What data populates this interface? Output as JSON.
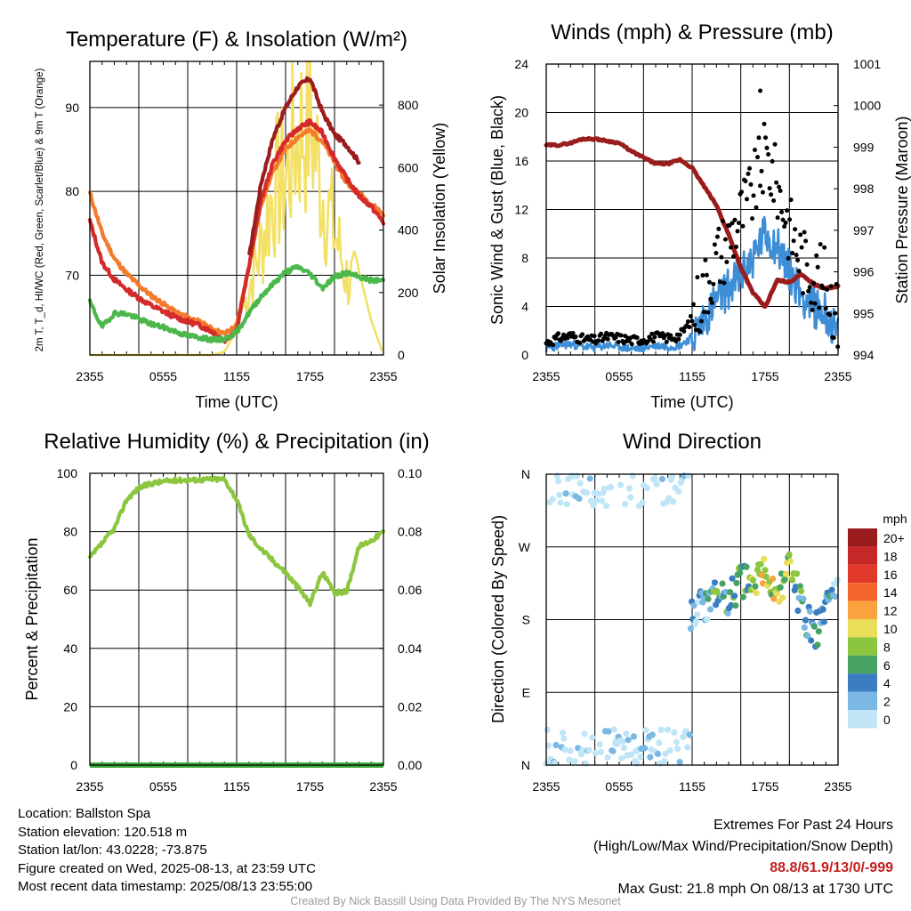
{
  "chart_data": [
    {
      "type": "line",
      "title": "Temperature (F) & Insolation (W/m²)",
      "xlabel": "Time (UTC)",
      "ylabel": "2m T, T_d, HI/WC (Red, Green, Scarlet/Blue) & 9m T (Orange)",
      "ylabel2": "Solar Insolation (Yellow)",
      "x_ticks": [
        "2355",
        "0555",
        "1155",
        "1755",
        "2355"
      ],
      "y_ticks": [
        70,
        80,
        90
      ],
      "y2_ticks": [
        0,
        200,
        400,
        600,
        800
      ],
      "ylim": [
        60.5,
        95.5
      ],
      "y2lim": [
        0,
        940
      ],
      "grid": true,
      "x_hours": [
        0,
        1,
        2,
        3,
        4,
        5,
        6,
        7,
        8,
        9,
        10,
        11,
        12,
        13,
        14,
        15,
        16,
        17,
        18,
        19,
        20,
        21,
        22,
        23,
        24
      ],
      "series": [
        {
          "name": "2m T",
          "color": "#d42a2a",
          "values": [
            76.5,
            71.5,
            69.5,
            68.3,
            67.3,
            66.4,
            65.7,
            65.0,
            64.5,
            64.0,
            63.3,
            62.2,
            63.5,
            71.0,
            79.0,
            83.5,
            86.0,
            87.5,
            88.3,
            87.0,
            84.0,
            81.5,
            79.5,
            78.2,
            76.3
          ]
        },
        {
          "name": "9m T",
          "color": "#f47b2b",
          "values": [
            79.8,
            75.0,
            72.0,
            70.2,
            68.8,
            67.6,
            66.6,
            65.6,
            65.0,
            64.4,
            63.6,
            63.0,
            64.0,
            71.0,
            78.5,
            82.5,
            85.0,
            86.5,
            87.3,
            86.0,
            83.5,
            81.0,
            79.8,
            78.5,
            77.3
          ]
        },
        {
          "name": "HI/WC",
          "color": "#9b1c1c",
          "values": [
            null,
            null,
            null,
            null,
            null,
            null,
            null,
            null,
            null,
            null,
            null,
            null,
            null,
            72.0,
            81.0,
            86.5,
            90.0,
            92.5,
            93.5,
            89.5,
            86.8,
            85.5,
            83.5,
            null,
            null
          ]
        },
        {
          "name": "T_d",
          "color": "#4cb84c",
          "values": [
            66.8,
            63.8,
            65.5,
            65.4,
            64.8,
            64.2,
            63.8,
            63.3,
            62.8,
            62.6,
            62.3,
            62.4,
            63.2,
            65.5,
            67.5,
            69.0,
            70.4,
            71.0,
            70.2,
            68.5,
            69.8,
            70.3,
            69.8,
            69.4,
            69.4
          ]
        },
        {
          "name": "Insolation",
          "color": "#f3e067",
          "axis": "y2",
          "values": [
            0,
            0,
            0,
            0,
            0,
            0,
            0,
            0,
            0,
            0,
            0,
            10,
            80,
            260,
            420,
            640,
            690,
            860,
            920,
            640,
            480,
            300,
            270,
            110,
            0
          ]
        }
      ]
    },
    {
      "type": "scatter",
      "title": "Winds (mph) & Pressure (mb)",
      "xlabel": "Time (UTC)",
      "ylabel": "Sonic Wind & Gust (Blue, Black)",
      "ylabel2": "Station Pressure (Maroon)",
      "x_ticks": [
        "2355",
        "0555",
        "1155",
        "1755",
        "2355"
      ],
      "y_ticks": [
        0,
        4,
        8,
        12,
        16,
        20,
        24
      ],
      "y2_ticks": [
        994,
        995,
        996,
        997,
        998,
        999,
        1000,
        1001
      ],
      "ylim": [
        0,
        24
      ],
      "y2lim": [
        994,
        1001
      ],
      "grid": true,
      "x_hours": [
        0,
        1,
        2,
        3,
        4,
        5,
        6,
        7,
        8,
        9,
        10,
        11,
        12,
        13,
        14,
        15,
        16,
        17,
        18,
        19,
        20,
        21,
        22,
        23,
        24
      ],
      "series": [
        {
          "name": "Sonic Wind",
          "color": "#3d8ed6",
          "values": [
            0.5,
            0.8,
            0.9,
            0.7,
            0.6,
            0.8,
            0.7,
            0.5,
            0.6,
            0.8,
            0.7,
            0.8,
            1.5,
            3.0,
            4.5,
            5.5,
            6.5,
            8.0,
            10.0,
            9.0,
            7.0,
            5.0,
            4.0,
            3.5,
            1.5
          ]
        },
        {
          "name": "Gust",
          "color": "#000000",
          "values": [
            1.0,
            1.4,
            1.6,
            1.3,
            1.2,
            1.5,
            1.4,
            1.2,
            1.3,
            1.5,
            1.4,
            1.6,
            3.0,
            5.5,
            8.0,
            9.5,
            11.5,
            13.5,
            16.5,
            14.0,
            10.5,
            8.0,
            6.5,
            6.0,
            3.0
          ]
        },
        {
          "name": "Station Pressure",
          "color": "#9b1c1c",
          "axis": "y2",
          "values": [
            999.05,
            999.05,
            999.1,
            999.2,
            999.2,
            999.15,
            999.1,
            998.9,
            998.75,
            998.6,
            998.6,
            998.7,
            998.5,
            998.05,
            997.6,
            996.9,
            996.1,
            995.5,
            995.15,
            995.8,
            995.75,
            995.95,
            995.7,
            995.6,
            995.65
          ]
        }
      ],
      "peak_gust": {
        "x_hour": 17.6,
        "value": 21.8
      }
    },
    {
      "type": "line",
      "title": "Relative Humidity (%) & Precipitation (in)",
      "xlabel": "",
      "ylabel": "Percent & Precipitation",
      "x_ticks": [
        "2355",
        "0555",
        "1155",
        "1755",
        "2355"
      ],
      "y_ticks": [
        0,
        20,
        40,
        60,
        80,
        100
      ],
      "y2_ticks": [
        "0.00",
        "0.02",
        "0.04",
        "0.06",
        "0.08",
        "0.10"
      ],
      "ylim": [
        0,
        100
      ],
      "y2lim": [
        0,
        0.1
      ],
      "grid": true,
      "x_hours": [
        0,
        1,
        2,
        3,
        4,
        5,
        6,
        7,
        8,
        9,
        10,
        11,
        12,
        13,
        14,
        15,
        16,
        17,
        18,
        19,
        20,
        21,
        22,
        23,
        24
      ],
      "series": [
        {
          "name": "Relative Humidity",
          "color": "#8cc63f",
          "values": [
            71,
            76,
            81,
            91,
            95,
            96.5,
            97.2,
            97.6,
            97.8,
            97.8,
            98,
            98,
            91,
            79,
            74,
            70,
            66,
            61,
            55.5,
            66,
            59,
            59.5,
            75,
            77,
            80
          ]
        },
        {
          "name": "Precipitation",
          "color": "#3daa3d",
          "axis": "y2",
          "values": [
            0,
            0,
            0,
            0,
            0,
            0,
            0,
            0,
            0,
            0,
            0,
            0,
            0,
            0,
            0,
            0,
            0,
            0,
            0,
            0,
            0,
            0,
            0,
            0,
            0
          ]
        }
      ]
    },
    {
      "type": "scatter",
      "title": "Wind Direction",
      "xlabel": "",
      "ylabel": "Direction (Colored By Speed)",
      "x_ticks": [
        "2355",
        "0555",
        "1155",
        "1755",
        "2355"
      ],
      "y_ticks": [
        "N",
        "E",
        "S",
        "W",
        "N"
      ],
      "grid": true,
      "colorbar": {
        "unit": "mph",
        "labels": [
          "20+",
          "18",
          "16",
          "14",
          "12",
          "10",
          "8",
          "6",
          "4",
          "2",
          "0"
        ],
        "colors": [
          "#9b1c1c",
          "#c62828",
          "#e0392b",
          "#f2662e",
          "#f9a23e",
          "#e9dd5a",
          "#8cc63f",
          "#47a364",
          "#3b7dc0",
          "#7bb8e3",
          "#bfe5f6"
        ]
      },
      "x_hours": [
        0,
        1,
        2,
        3,
        4,
        5,
        6,
        7,
        8,
        9,
        10,
        11,
        12,
        13,
        14,
        15,
        16,
        17,
        18,
        19,
        20,
        21,
        22,
        23,
        24
      ],
      "direction_deg": [
        20,
        350,
        340,
        30,
        330,
        15,
        345,
        25,
        20,
        355,
        340,
        20,
        190,
        200,
        210,
        205,
        230,
        220,
        240,
        210,
        245,
        200,
        160,
        190,
        220
      ],
      "speed_mph": [
        0.5,
        0.8,
        0.9,
        0.7,
        0.6,
        0.8,
        0.7,
        0.5,
        0.6,
        0.8,
        0.7,
        0.8,
        1.5,
        3.0,
        4.5,
        5.5,
        6.5,
        8.0,
        10.0,
        9.0,
        7.0,
        5.0,
        4.0,
        3.5,
        1.5
      ]
    }
  ],
  "info": {
    "location": "Location: Ballston Spa",
    "elevation": "Station elevation: 120.518 m",
    "latlon": "Station lat/lon: 43.0228; -73.875",
    "created": "Figure created on Wed, 2025-08-13, at 23:59 UTC",
    "recent": "Most recent data timestamp: 2025/08/13 23:55:00"
  },
  "extremes": {
    "heading": "Extremes For Past 24 Hours",
    "legend": "(High/Low/Max Wind/Precipitation/Snow Depth)",
    "values": "88.8/61.9/13/0/-999",
    "max_gust": "Max Gust: 21.8 mph On 08/13 at 1730 UTC"
  },
  "credit": "Created By Nick Bassill Using Data Provided By The NYS Mesonet"
}
